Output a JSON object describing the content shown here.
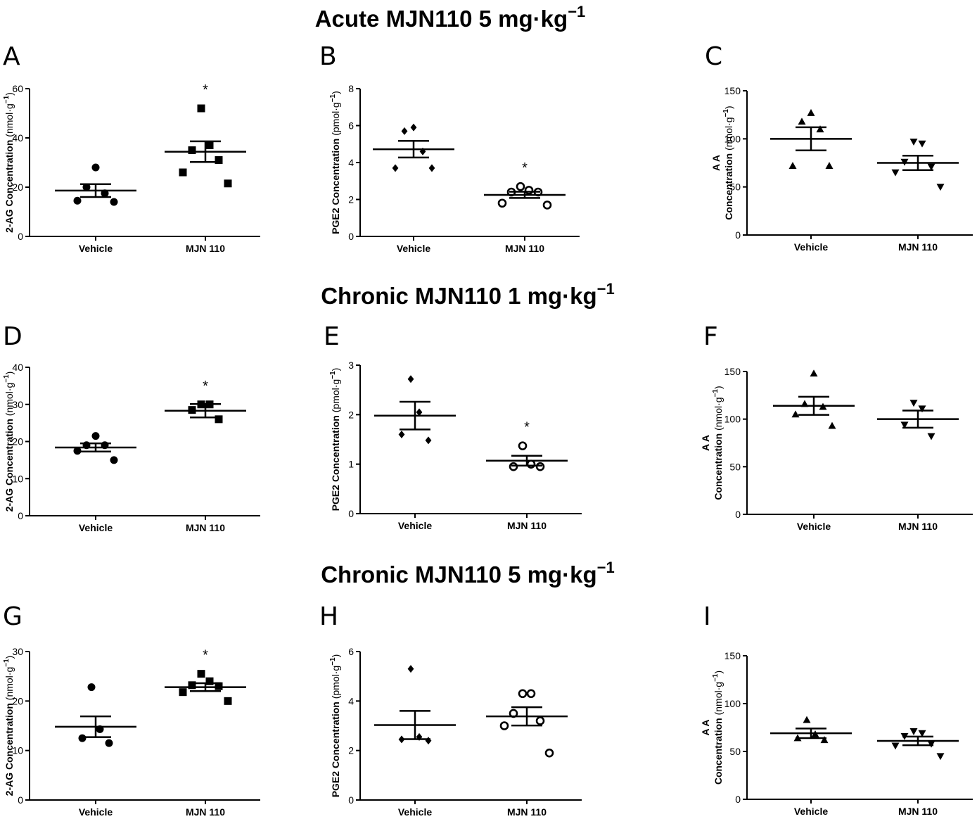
{
  "sections": [
    {
      "title": "Acute MJN110 5 mg·kg",
      "sup": "−1"
    },
    {
      "title": "Chronic MJN110 1 mg·kg",
      "sup": "−1"
    },
    {
      "title": "Chronic MJN110 5 mg·kg",
      "sup": "−1"
    }
  ],
  "chart_data": [
    {
      "type": "scatter",
      "panel": "A",
      "categories": [
        "Vehicle",
        "MJN 110"
      ],
      "ylabel": "2-AG Concentration",
      "yunit": "(nmol·g",
      "yunit_sup": "−1",
      "yunit_close": ")",
      "ylim": [
        0,
        60
      ],
      "yticks": [
        0,
        20,
        40,
        60
      ],
      "series": [
        {
          "category": "Vehicle",
          "marker": "circle",
          "points": [
            28,
            20,
            17.5,
            14.5,
            14
          ],
          "mean": 18.6,
          "sem": 2.6
        },
        {
          "category": "MJN 110",
          "marker": "square",
          "points": [
            52,
            37,
            35,
            31,
            26,
            21.5
          ],
          "mean": 34.4,
          "sem": 4.2
        }
      ],
      "significance": [
        "",
        "*"
      ]
    },
    {
      "type": "scatter",
      "panel": "B",
      "categories": [
        "Vehicle",
        "MJN 110"
      ],
      "ylabel": "PGE2 Concentration",
      "yunit": "(pmol·g",
      "yunit_sup": "−1",
      "yunit_close": ")",
      "ylim": [
        0,
        8
      ],
      "yticks": [
        0,
        2,
        4,
        6,
        8
      ],
      "series": [
        {
          "category": "Vehicle",
          "marker": "diamond",
          "points": [
            5.9,
            5.7,
            4.6,
            3.7,
            3.7
          ],
          "mean": 4.72,
          "sem": 0.45
        },
        {
          "category": "MJN 110",
          "marker": "open-circle",
          "points": [
            2.7,
            2.5,
            2.4,
            2.4,
            1.8,
            1.7
          ],
          "mean": 2.25,
          "sem": 0.17
        }
      ],
      "significance": [
        "",
        "*"
      ]
    },
    {
      "type": "scatter",
      "panel": "C",
      "categories": [
        "Vehicle",
        "MJN 110"
      ],
      "ylabel": "A A",
      "ylabel2": "Concentration",
      "yunit": "(nmol·g",
      "yunit_sup": "−1",
      "yunit_close": ")",
      "ylim": [
        0,
        150
      ],
      "yticks": [
        0,
        50,
        100,
        150
      ],
      "series": [
        {
          "category": "Vehicle",
          "marker": "triangle-up",
          "points": [
            127,
            118,
            110,
            72,
            72
          ],
          "mean": 100,
          "sem": 12
        },
        {
          "category": "MJN 110",
          "marker": "triangle-down",
          "points": [
            97,
            95,
            76,
            71,
            65,
            50
          ],
          "mean": 75,
          "sem": 7.5
        }
      ],
      "significance": [
        "",
        ""
      ]
    },
    {
      "type": "scatter",
      "panel": "D",
      "categories": [
        "Vehicle",
        "MJN 110"
      ],
      "ylabel": "2-AG Concentration",
      "yunit": "(nmol·g",
      "yunit_sup": "−1",
      "yunit_close": ")",
      "ylim": [
        0,
        40
      ],
      "yticks": [
        0,
        10,
        20,
        30,
        40
      ],
      "series": [
        {
          "category": "Vehicle",
          "marker": "circle",
          "points": [
            21.5,
            19,
            19,
            17.5,
            15
          ],
          "mean": 18.4,
          "sem": 1.1
        },
        {
          "category": "MJN 110",
          "marker": "square",
          "points": [
            30,
            30,
            28.5,
            26
          ],
          "mean": 28.3,
          "sem": 1.8
        }
      ],
      "significance": [
        "",
        "*"
      ]
    },
    {
      "type": "scatter",
      "panel": "E",
      "categories": [
        "Vehicle",
        "MJN 110"
      ],
      "ylabel": "PGE2 Concentration",
      "yunit": "(pmol·g",
      "yunit_sup": "−1",
      "yunit_close": ")",
      "ylim": [
        0,
        3
      ],
      "yticks": [
        0,
        1,
        2,
        3
      ],
      "series": [
        {
          "category": "Vehicle",
          "marker": "diamond",
          "points": [
            2.72,
            2.05,
            1.6,
            1.48
          ],
          "mean": 1.98,
          "sem": 0.28
        },
        {
          "category": "MJN 110",
          "marker": "open-circle",
          "points": [
            1.37,
            1.0,
            0.95,
            0.95
          ],
          "mean": 1.07,
          "sem": 0.1
        }
      ],
      "significance": [
        "",
        "*"
      ]
    },
    {
      "type": "scatter",
      "panel": "F",
      "categories": [
        "Vehicle",
        "MJN 110"
      ],
      "ylabel": "A A",
      "ylabel2": "Concentration",
      "yunit": "(nmol·g",
      "yunit_sup": "−1",
      "yunit_close": ")",
      "ylim": [
        0,
        150
      ],
      "yticks": [
        0,
        50,
        100,
        150
      ],
      "series": [
        {
          "category": "Vehicle",
          "marker": "triangle-up",
          "points": [
            148,
            116,
            113,
            105,
            93
          ],
          "mean": 114,
          "sem": 9.5
        },
        {
          "category": "MJN 110",
          "marker": "triangle-down",
          "points": [
            117,
            111,
            94,
            82
          ],
          "mean": 100,
          "sem": 9
        }
      ],
      "significance": [
        "",
        ""
      ]
    },
    {
      "type": "scatter",
      "panel": "G",
      "categories": [
        "Vehicle",
        "MJN 110"
      ],
      "ylabel": "2-AG Concentration",
      "yunit": "(nmol·g",
      "yunit_sup": "−1",
      "yunit_close": ")",
      "ylim": [
        0,
        30
      ],
      "yticks": [
        0,
        10,
        20,
        30
      ],
      "series": [
        {
          "category": "Vehicle",
          "marker": "circle",
          "points": [
            22.8,
            14.3,
            12.5,
            11.5
          ],
          "mean": 14.8,
          "sem": 2.1
        },
        {
          "category": "MJN 110",
          "marker": "square",
          "points": [
            25.5,
            24,
            23.2,
            23,
            21.8,
            20
          ],
          "mean": 22.8,
          "sem": 0.8
        }
      ],
      "significance": [
        "",
        "*"
      ]
    },
    {
      "type": "scatter",
      "panel": "H",
      "categories": [
        "Vehicle",
        "MJN 110"
      ],
      "ylabel": "PGE2 Concentration",
      "yunit": "(pmol·g",
      "yunit_sup": "−1",
      "yunit_close": ")",
      "ylim": [
        0,
        6
      ],
      "yticks": [
        0,
        2,
        4,
        6
      ],
      "series": [
        {
          "category": "Vehicle",
          "marker": "diamond",
          "points": [
            5.3,
            2.55,
            2.45,
            2.4
          ],
          "mean": 3.03,
          "sem": 0.57
        },
        {
          "category": "MJN 110",
          "marker": "open-circle",
          "points": [
            4.3,
            4.3,
            3.5,
            3.2,
            3.0,
            1.9
          ],
          "mean": 3.38,
          "sem": 0.37
        }
      ],
      "significance": [
        "",
        ""
      ]
    },
    {
      "type": "scatter",
      "panel": "I",
      "categories": [
        "Vehicle",
        "MJN 110"
      ],
      "ylabel": "A A",
      "ylabel2": "Concentration",
      "yunit": "(nmol·g",
      "yunit_sup": "−1",
      "yunit_close": ")",
      "ylim": [
        0,
        150
      ],
      "yticks": [
        0,
        50,
        100,
        150
      ],
      "series": [
        {
          "category": "Vehicle",
          "marker": "triangle-up",
          "points": [
            83,
            68,
            64,
            62
          ],
          "mean": 69,
          "sem": 5
        },
        {
          "category": "MJN 110",
          "marker": "triangle-down",
          "points": [
            71,
            69,
            66,
            58,
            56,
            45
          ],
          "mean": 61,
          "sem": 4.5
        }
      ],
      "significance": [
        "",
        ""
      ]
    }
  ]
}
